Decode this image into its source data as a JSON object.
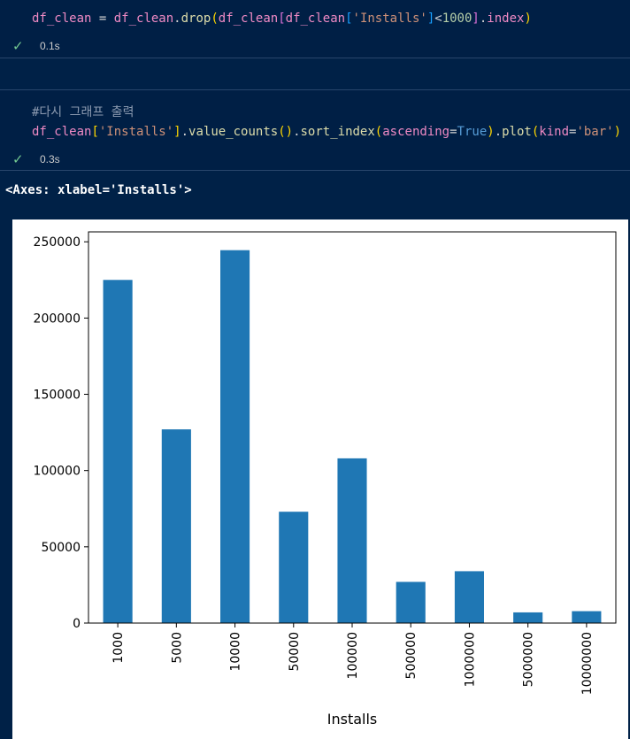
{
  "cells": [
    {
      "code_tokens": [
        {
          "t": "df_clean",
          "c": "var"
        },
        {
          "t": " = ",
          "c": "plain"
        },
        {
          "t": "df_clean",
          "c": "var"
        },
        {
          "t": ".",
          "c": "plain"
        },
        {
          "t": "drop",
          "c": "fn"
        },
        {
          "t": "(",
          "c": "b1"
        },
        {
          "t": "df_clean",
          "c": "var"
        },
        {
          "t": "[",
          "c": "b2"
        },
        {
          "t": "df_clean",
          "c": "var"
        },
        {
          "t": "[",
          "c": "b3"
        },
        {
          "t": "'Installs'",
          "c": "str"
        },
        {
          "t": "]",
          "c": "b3"
        },
        {
          "t": "<",
          "c": "plain"
        },
        {
          "t": "1000",
          "c": "num"
        },
        {
          "t": "]",
          "c": "b2"
        },
        {
          "t": ".",
          "c": "plain"
        },
        {
          "t": "index",
          "c": "var"
        },
        {
          "t": ")",
          "c": "b1"
        }
      ],
      "status_time": "0.1s"
    },
    {
      "comment": "#다시 그래프 출력",
      "code_tokens": [
        {
          "t": "df_clean",
          "c": "var"
        },
        {
          "t": "[",
          "c": "b1"
        },
        {
          "t": "'Installs'",
          "c": "str"
        },
        {
          "t": "]",
          "c": "b1"
        },
        {
          "t": ".",
          "c": "plain"
        },
        {
          "t": "value_counts",
          "c": "fn"
        },
        {
          "t": "()",
          "c": "b1"
        },
        {
          "t": ".",
          "c": "plain"
        },
        {
          "t": "sort_index",
          "c": "fn"
        },
        {
          "t": "(",
          "c": "b1"
        },
        {
          "t": "ascending",
          "c": "var"
        },
        {
          "t": "=",
          "c": "plain"
        },
        {
          "t": "True",
          "c": "kw"
        },
        {
          "t": ")",
          "c": "b1"
        },
        {
          "t": ".",
          "c": "plain"
        },
        {
          "t": "plot",
          "c": "fn"
        },
        {
          "t": "(",
          "c": "b1"
        },
        {
          "t": "kind",
          "c": "var"
        },
        {
          "t": "=",
          "c": "plain"
        },
        {
          "t": "'bar'",
          "c": "str"
        },
        {
          "t": ")",
          "c": "b1"
        }
      ],
      "status_time": "0.3s"
    }
  ],
  "output_text": "<Axes: xlabel='Installs'>",
  "colors": {
    "bar": "#1f77b4",
    "status_check": "#73c991"
  },
  "icons": {
    "status": "check-icon"
  },
  "chart_data": {
    "type": "bar",
    "categories": [
      "1000",
      "5000",
      "10000",
      "50000",
      "100000",
      "500000",
      "1000000",
      "5000000",
      "10000000"
    ],
    "values": [
      225000,
      127000,
      244500,
      73000,
      108000,
      27000,
      34000,
      7000,
      7800
    ],
    "xlabel": "Installs",
    "ylabel": "",
    "title": "",
    "ylim": [
      0,
      256500
    ],
    "yticks": [
      0,
      50000,
      100000,
      150000,
      200000,
      250000
    ],
    "grid": false,
    "legend": "none"
  }
}
